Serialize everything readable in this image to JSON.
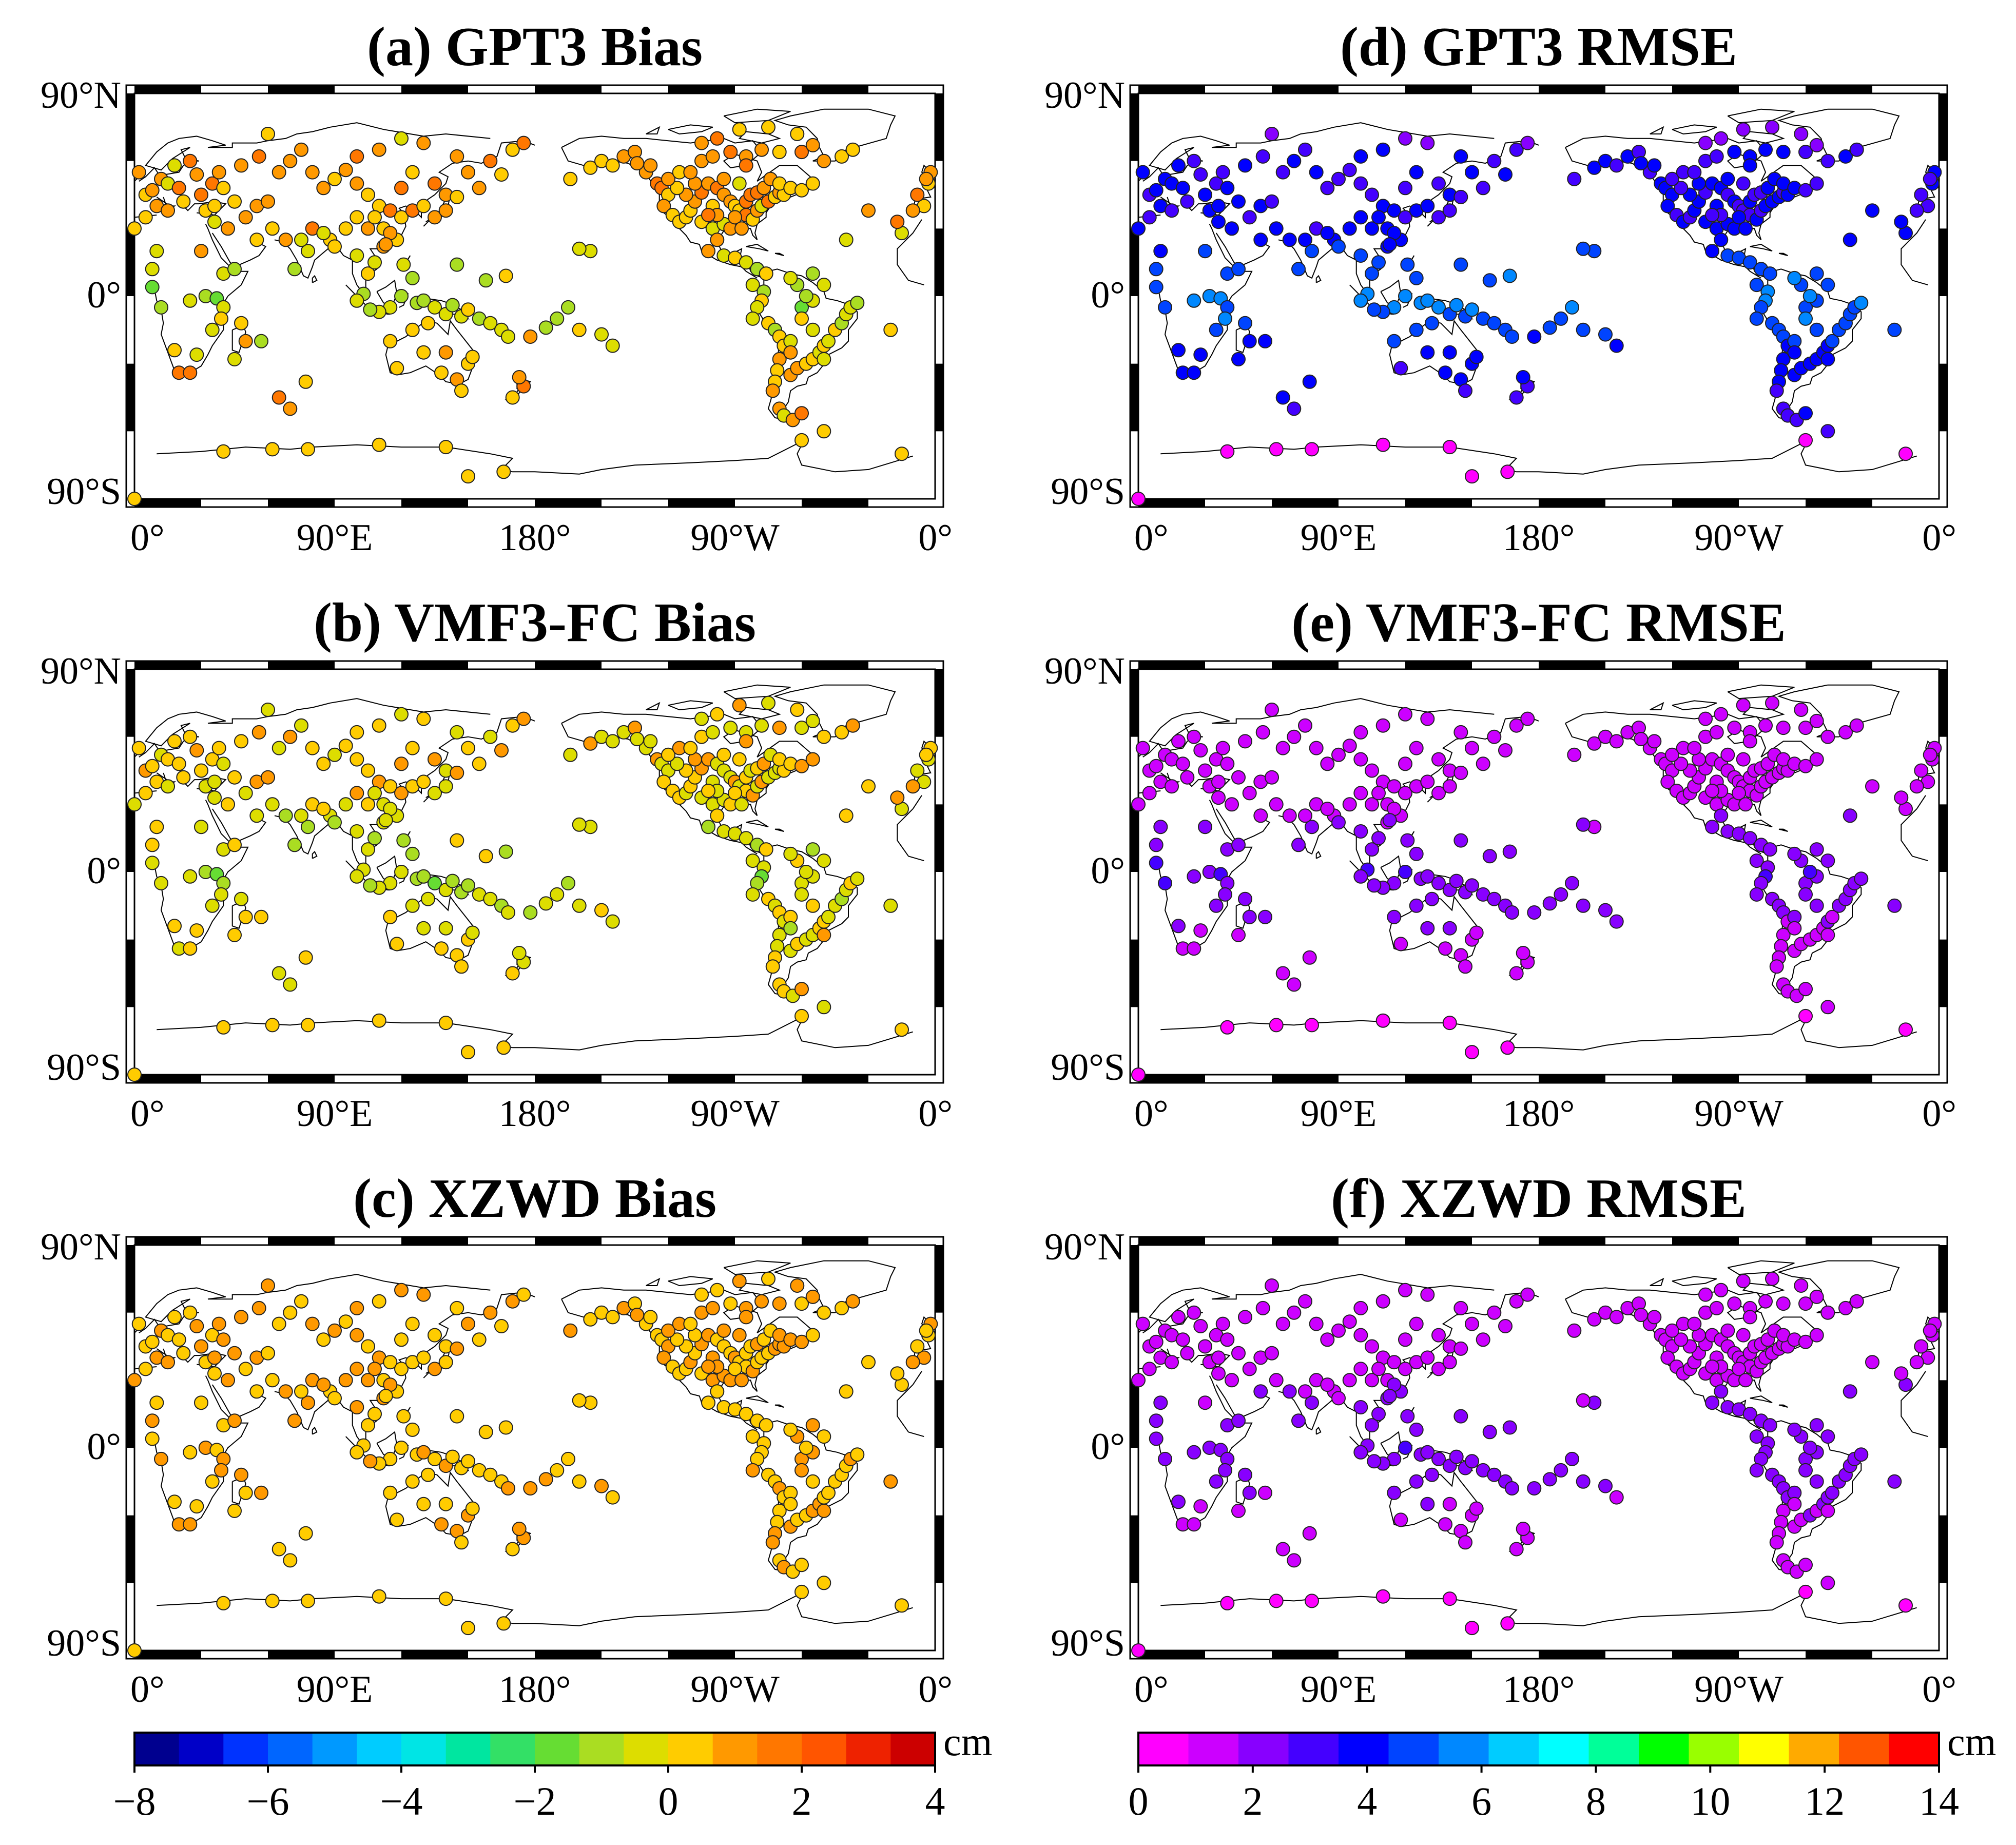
{
  "figure": {
    "panels": [
      {
        "id": "a",
        "title": "(a) GPT3 Bias",
        "scale": "bias",
        "profile": {
          "base": 0.8,
          "spread": 0.9,
          "tropical_shift": -1.6
        }
      },
      {
        "id": "d",
        "title": "(d) GPT3 RMSE",
        "scale": "rmse",
        "profile": {
          "base": 3.2,
          "spread": 0.7,
          "tropical_shift": 2.0
        }
      },
      {
        "id": "b",
        "title": "(b) VMF3-FC Bias",
        "scale": "bias",
        "profile": {
          "base": 0.2,
          "spread": 0.8,
          "tropical_shift": -1.0
        }
      },
      {
        "id": "e",
        "title": "(e) VMF3-FC RMSE",
        "scale": "rmse",
        "profile": {
          "base": 1.1,
          "spread": 0.4,
          "tropical_shift": 1.4
        }
      },
      {
        "id": "c",
        "title": "(c) XZWD Bias",
        "scale": "bias",
        "profile": {
          "base": 0.7,
          "spread": 0.5,
          "tropical_shift": -0.2
        }
      },
      {
        "id": "f",
        "title": "(f) XZWD RMSE",
        "scale": "rmse",
        "profile": {
          "base": 1.3,
          "spread": 0.4,
          "tropical_shift": 1.0
        }
      }
    ],
    "axes": {
      "lat_labels": [
        "90°N",
        "0°",
        "90°S"
      ],
      "lon_labels": [
        "0°",
        "90°E",
        "180°",
        "90°W",
        "0°"
      ]
    },
    "colorbars": {
      "bias": {
        "min": -8,
        "max": 4,
        "unit": "cm",
        "ticks": [
          "−8",
          "−6",
          "−4",
          "−2",
          "0",
          "2",
          "4"
        ],
        "colors": [
          "#00008f",
          "#0000c8",
          "#0033ff",
          "#0066ff",
          "#0099ff",
          "#00ccff",
          "#00e5e5",
          "#00e6a0",
          "#33e066",
          "#66dd33",
          "#aadd22",
          "#dddd00",
          "#ffcc00",
          "#ff9900",
          "#ff7700",
          "#ff5500",
          "#ee2200",
          "#cc0000"
        ]
      },
      "rmse": {
        "min": 0,
        "max": 14,
        "unit": "cm",
        "ticks": [
          "0",
          "2",
          "4",
          "6",
          "8",
          "10",
          "12",
          "14"
        ],
        "colors": [
          "#ff00ff",
          "#cc00ff",
          "#8800ff",
          "#4400ff",
          "#0000ff",
          "#0044ff",
          "#0088ff",
          "#00ccff",
          "#00ffff",
          "#00ff99",
          "#00ff00",
          "#99ff00",
          "#ffff00",
          "#ffaa00",
          "#ff5500",
          "#ff0000"
        ]
      }
    }
  },
  "chart_data": {
    "type": "scatter",
    "description_units": "station longitude (0-360°E), latitude (°)",
    "stations": [
      [
        12,
        52
      ],
      [
        15,
        50
      ],
      [
        20,
        48
      ],
      [
        5,
        45
      ],
      [
        8,
        47
      ],
      [
        2,
        55
      ],
      [
        18,
        58
      ],
      [
        25,
        60
      ],
      [
        28,
        54
      ],
      [
        10,
        40
      ],
      [
        22,
        42
      ],
      [
        30,
        45
      ],
      [
        35,
        50
      ],
      [
        38,
        55
      ],
      [
        40,
        48
      ],
      [
        45,
        42
      ],
      [
        32,
        38
      ],
      [
        15,
        38
      ],
      [
        36,
        33
      ],
      [
        42,
        30
      ],
      [
        50,
        35
      ],
      [
        55,
        40
      ],
      [
        60,
        42
      ],
      [
        48,
        58
      ],
      [
        56,
        62
      ],
      [
        65,
        55
      ],
      [
        70,
        60
      ],
      [
        75,
        65
      ],
      [
        60,
        72
      ],
      [
        80,
        55
      ],
      [
        85,
        48
      ],
      [
        90,
        52
      ],
      [
        95,
        56
      ],
      [
        100,
        50
      ],
      [
        105,
        45
      ],
      [
        110,
        40
      ],
      [
        115,
        38
      ],
      [
        120,
        35
      ],
      [
        125,
        38
      ],
      [
        130,
        40
      ],
      [
        135,
        35
      ],
      [
        140,
        38
      ],
      [
        120,
        48
      ],
      [
        125,
        55
      ],
      [
        135,
        50
      ],
      [
        140,
        45
      ],
      [
        145,
        44
      ],
      [
        150,
        55
      ],
      [
        160,
        60
      ],
      [
        170,
        65
      ],
      [
        175,
        68
      ],
      [
        100,
        62
      ],
      [
        110,
        65
      ],
      [
        120,
        70
      ],
      [
        130,
        68
      ],
      [
        145,
        62
      ],
      [
        155,
        48
      ],
      [
        165,
        54
      ],
      [
        78,
        20
      ],
      [
        75,
        25
      ],
      [
        80,
        30
      ],
      [
        88,
        25
      ],
      [
        68,
        25
      ],
      [
        72,
        12
      ],
      [
        100,
        18
      ],
      [
        103,
        1
      ],
      [
        105,
        10
      ],
      [
        108,
        15
      ],
      [
        112,
        22
      ],
      [
        118,
        25
      ],
      [
        121,
        14
      ],
      [
        125,
        8
      ],
      [
        120,
        0
      ],
      [
        115,
        -5
      ],
      [
        110,
        -7
      ],
      [
        106,
        -6
      ],
      [
        100,
        -2
      ],
      [
        127,
        -3
      ],
      [
        130,
        -2
      ],
      [
        135,
        -5
      ],
      [
        140,
        -8
      ],
      [
        143,
        -4
      ],
      [
        147,
        -9
      ],
      [
        150,
        -6
      ],
      [
        155,
        -10
      ],
      [
        160,
        -12
      ],
      [
        165,
        -15
      ],
      [
        168,
        -18
      ],
      [
        150,
        -30
      ],
      [
        145,
        -37
      ],
      [
        138,
        -34
      ],
      [
        130,
        -25
      ],
      [
        118,
        -32
      ],
      [
        115,
        -20
      ],
      [
        125,
        -15
      ],
      [
        132,
        -12
      ],
      [
        140,
        -25
      ],
      [
        152,
        -27
      ],
      [
        147,
        -42
      ],
      [
        170,
        -45
      ],
      [
        175,
        -40
      ],
      [
        173,
        -36
      ],
      [
        178,
        -18
      ],
      [
        185,
        -14
      ],
      [
        190,
        -10
      ],
      [
        200,
        -15
      ],
      [
        210,
        -17
      ],
      [
        215,
        -22
      ],
      [
        195,
        -5
      ],
      [
        145,
        14
      ],
      [
        158,
        7
      ],
      [
        167,
        9
      ],
      [
        205,
        20
      ],
      [
        200,
        21
      ],
      [
        196,
        52
      ],
      [
        205,
        57
      ],
      [
        210,
        60
      ],
      [
        215,
        58
      ],
      [
        220,
        62
      ],
      [
        225,
        64
      ],
      [
        230,
        55
      ],
      [
        235,
        50
      ],
      [
        237,
        48
      ],
      [
        240,
        45
      ],
      [
        238,
        40
      ],
      [
        242,
        36
      ],
      [
        245,
        33
      ],
      [
        248,
        35
      ],
      [
        250,
        38
      ],
      [
        252,
        42
      ],
      [
        255,
        46
      ],
      [
        258,
        50
      ],
      [
        262,
        48
      ],
      [
        265,
        45
      ],
      [
        268,
        42
      ],
      [
        270,
        40
      ],
      [
        272,
        38
      ],
      [
        275,
        36
      ],
      [
        278,
        34
      ],
      [
        280,
        38
      ],
      [
        282,
        40
      ],
      [
        285,
        42
      ],
      [
        288,
        44
      ],
      [
        290,
        46
      ],
      [
        292,
        45
      ],
      [
        255,
        33
      ],
      [
        260,
        30
      ],
      [
        265,
        32
      ],
      [
        268,
        30
      ],
      [
        270,
        35
      ],
      [
        273,
        30
      ],
      [
        275,
        42
      ],
      [
        277,
        45
      ],
      [
        260,
        40
      ],
      [
        262,
        36
      ],
      [
        258,
        36
      ],
      [
        248,
        45
      ],
      [
        244,
        48
      ],
      [
        252,
        50
      ],
      [
        265,
        52
      ],
      [
        272,
        50
      ],
      [
        280,
        46
      ],
      [
        283,
        48
      ],
      [
        286,
        52
      ],
      [
        290,
        50
      ],
      [
        295,
        48
      ],
      [
        300,
        47
      ],
      [
        305,
        50
      ],
      [
        240,
        52
      ],
      [
        245,
        55
      ],
      [
        232,
        58
      ],
      [
        226,
        59
      ],
      [
        250,
        55
      ],
      [
        255,
        60
      ],
      [
        260,
        62
      ],
      [
        268,
        64
      ],
      [
        275,
        62
      ],
      [
        282,
        65
      ],
      [
        290,
        64
      ],
      [
        300,
        64
      ],
      [
        305,
        67
      ],
      [
        310,
        60
      ],
      [
        318,
        62
      ],
      [
        323,
        65
      ],
      [
        298,
        72
      ],
      [
        285,
        75
      ],
      [
        272,
        74
      ],
      [
        262,
        70
      ],
      [
        255,
        68
      ],
      [
        275,
        58
      ],
      [
        262,
        25
      ],
      [
        258,
        20
      ],
      [
        265,
        18
      ],
      [
        270,
        17
      ],
      [
        275,
        15
      ],
      [
        280,
        12
      ],
      [
        284,
        10
      ],
      [
        278,
        5
      ],
      [
        283,
        2
      ],
      [
        282,
        -2
      ],
      [
        280,
        -5
      ],
      [
        278,
        -10
      ],
      [
        285,
        -12
      ],
      [
        288,
        -15
      ],
      [
        290,
        -18
      ],
      [
        292,
        -22
      ],
      [
        290,
        -28
      ],
      [
        289,
        -33
      ],
      [
        288,
        -38
      ],
      [
        287,
        -42
      ],
      [
        290,
        -50
      ],
      [
        292,
        -53
      ],
      [
        296,
        -55
      ],
      [
        300,
        -52
      ],
      [
        295,
        -35
      ],
      [
        298,
        -32
      ],
      [
        302,
        -30
      ],
      [
        305,
        -28
      ],
      [
        308,
        -25
      ],
      [
        310,
        -22
      ],
      [
        312,
        -20
      ],
      [
        315,
        -15
      ],
      [
        318,
        -12
      ],
      [
        320,
        -8
      ],
      [
        322,
        -5
      ],
      [
        325,
        -3
      ],
      [
        300,
        -5
      ],
      [
        305,
        -2
      ],
      [
        302,
        0
      ],
      [
        298,
        5
      ],
      [
        295,
        8
      ],
      [
        305,
        10
      ],
      [
        310,
        5
      ],
      [
        300,
        -10
      ],
      [
        305,
        -15
      ],
      [
        310,
        -28
      ],
      [
        295,
        -20
      ],
      [
        295,
        -25
      ],
      [
        340,
        -15
      ],
      [
        345,
        28
      ],
      [
        343,
        33
      ],
      [
        355,
        40
      ],
      [
        352,
        45
      ],
      [
        357,
        50
      ],
      [
        358,
        55
      ],
      [
        356,
        52
      ],
      [
        350,
        38
      ],
      [
        320,
        25
      ],
      [
        330,
        38
      ],
      [
        12,
        -5
      ],
      [
        8,
        4
      ],
      [
        25,
        -2
      ],
      [
        32,
        0
      ],
      [
        37,
        -1
      ],
      [
        40,
        -5
      ],
      [
        39,
        -10
      ],
      [
        35,
        -15
      ],
      [
        28,
        -26
      ],
      [
        20,
        -34
      ],
      [
        25,
        -34
      ],
      [
        18,
        -24
      ],
      [
        50,
        -20
      ],
      [
        57,
        -20
      ],
      [
        48,
        -12
      ],
      [
        45,
        -28
      ],
      [
        65,
        -45
      ],
      [
        77,
        -38
      ],
      [
        70,
        -50
      ],
      [
        62,
        -68
      ],
      [
        78,
        -68
      ],
      [
        110,
        -66
      ],
      [
        140,
        -67
      ],
      [
        166,
        -78
      ],
      [
        150,
        -80
      ],
      [
        300,
        -64
      ],
      [
        310,
        -60
      ],
      [
        345,
        -70
      ],
      [
        40,
        -69
      ],
      [
        0,
        -90
      ],
      [
        40,
        10
      ],
      [
        45,
        12
      ],
      [
        8,
        12
      ],
      [
        0,
        30
      ],
      [
        5,
        35
      ],
      [
        10,
        20
      ],
      [
        30,
        20
      ],
      [
        36,
        40
      ],
      [
        55,
        25
      ],
      [
        62,
        30
      ],
      [
        85,
        28
      ],
      [
        90,
        22
      ],
      [
        95,
        30
      ],
      [
        100,
        35
      ],
      [
        105,
        30
      ],
      [
        108,
        35
      ],
      [
        112,
        30
      ],
      [
        115,
        28
      ],
      [
        113,
        23
      ]
    ],
    "series_note": "each panel colors the same station set by its per-panel error profile; colorbar bias range -8 to 4 cm, RMSE range 0 to 14 cm",
    "x_range": [
      0,
      360
    ],
    "y_range": [
      -90,
      90
    ]
  }
}
